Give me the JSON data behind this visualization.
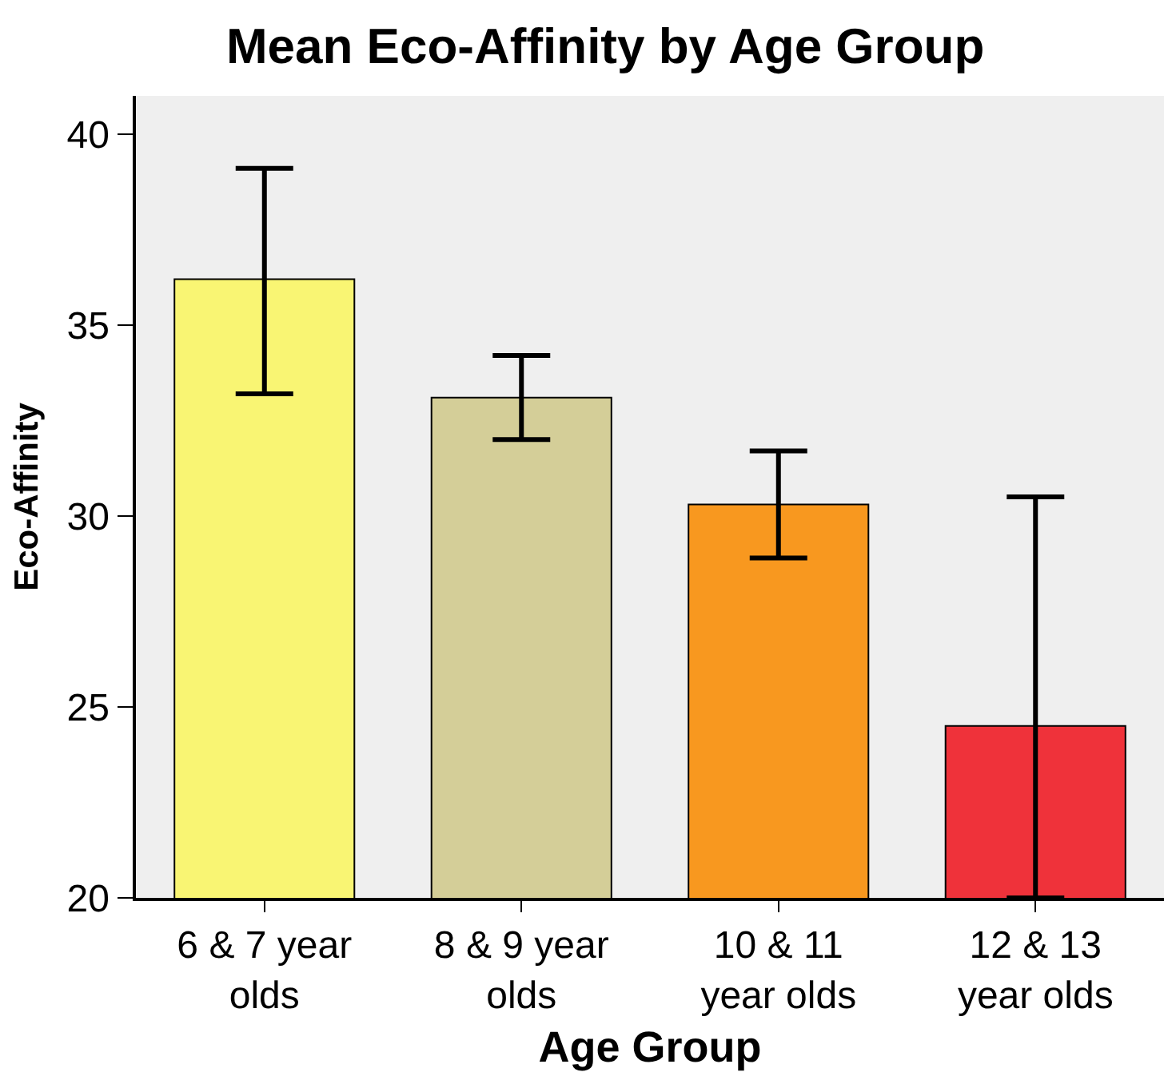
{
  "chart_data": {
    "type": "bar",
    "title": "Mean Eco-Affinity by Age Group",
    "xlabel": "Age Group",
    "ylabel": "Eco-Affinity",
    "categories": [
      "6 & 7 year olds",
      "8 & 9 year olds",
      "10 & 11 year olds",
      "12 & 13 year olds"
    ],
    "values": [
      36.2,
      33.1,
      30.3,
      24.5
    ],
    "colors": [
      "#f9f573",
      "#d4ce98",
      "#f8981f",
      "#ef323a"
    ],
    "errors": [
      [
        33.2,
        39.1
      ],
      [
        32.0,
        34.2
      ],
      [
        28.9,
        31.7
      ],
      [
        20,
        30.5
      ]
    ],
    "ylim": [
      20,
      41
    ],
    "yticks": [
      20,
      25,
      30,
      35,
      40
    ]
  }
}
